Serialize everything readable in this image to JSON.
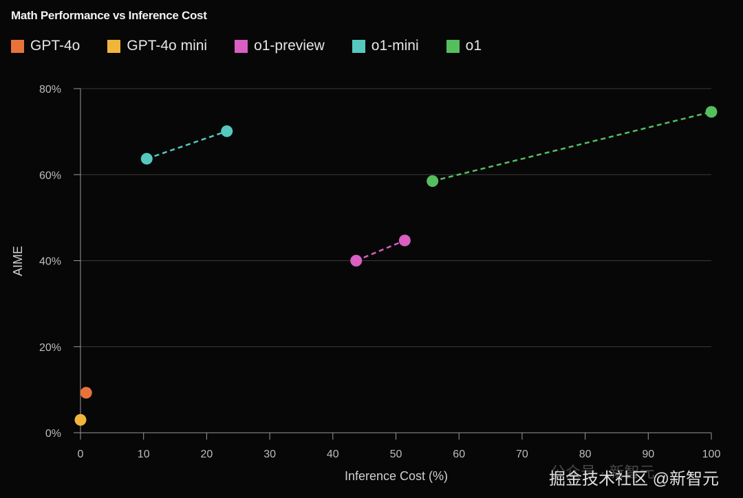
{
  "chart_data": {
    "type": "scatter",
    "title": "Math Performance vs Inference Cost",
    "xlabel": "Inference Cost (%)",
    "ylabel": "AIME",
    "xlim": [
      0,
      100
    ],
    "ylim": [
      0,
      80
    ],
    "xticks": [
      "0",
      "10",
      "20",
      "30",
      "40",
      "50",
      "60",
      "70",
      "80",
      "90",
      "100"
    ],
    "yticks": [
      "0%",
      "20%",
      "40%",
      "60%",
      "80%"
    ],
    "grid": "horizontal",
    "legend_position": "top-left",
    "series": [
      {
        "name": "GPT-4o",
        "color": "#e8733a",
        "points": [
          [
            0.9,
            9.3
          ]
        ],
        "connected": false
      },
      {
        "name": "GPT-4o mini",
        "color": "#f2b53c",
        "points": [
          [
            0.0,
            3.0
          ]
        ],
        "connected": false
      },
      {
        "name": "o1-preview",
        "color": "#d95fc3",
        "points": [
          [
            43.7,
            40.0
          ],
          [
            51.4,
            44.7
          ]
        ],
        "connected": true
      },
      {
        "name": "o1-mini",
        "color": "#55c9c0",
        "points": [
          [
            10.5,
            63.7
          ],
          [
            23.2,
            70.1
          ]
        ],
        "connected": true
      },
      {
        "name": "o1",
        "color": "#55bf5e",
        "points": [
          [
            55.8,
            58.5
          ],
          [
            100,
            74.6
          ]
        ],
        "connected": true
      }
    ]
  },
  "watermark": {
    "faint": "公众号 · 新智元",
    "main": "掘金技术社区 @新智元"
  }
}
